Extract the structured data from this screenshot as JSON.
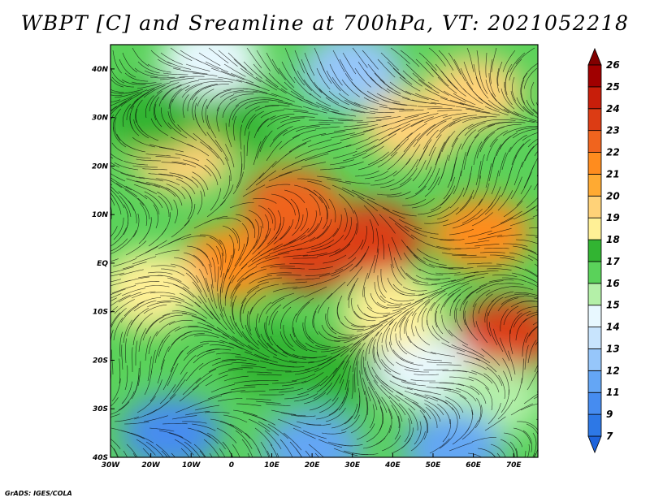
{
  "chart_data": {
    "type": "heatmap",
    "title": "WBPT [C] and Sreamline at 700hPa, VT: 2021052218",
    "variable": "WBPT",
    "units": "C",
    "level": "700hPa",
    "valid_time": "2021052218",
    "overlay": "streamlines",
    "x_axis": {
      "range": [
        -30,
        76
      ],
      "ticks": [
        -30,
        -20,
        -10,
        0,
        10,
        20,
        30,
        40,
        50,
        60,
        70
      ],
      "tick_labels": [
        "30W",
        "20W",
        "10W",
        "0",
        "10E",
        "20E",
        "30E",
        "40E",
        "50E",
        "60E",
        "70E"
      ]
    },
    "y_axis": {
      "range": [
        -40,
        45
      ],
      "ticks": [
        40,
        30,
        20,
        10,
        0,
        -10,
        -20,
        -30,
        -40
      ],
      "tick_labels": [
        "40N",
        "30N",
        "20N",
        "10N",
        "EQ",
        "10S",
        "20S",
        "30S",
        "40S"
      ]
    },
    "colorbar": {
      "levels": [
        "7",
        "9",
        "11",
        "12",
        "13",
        "14",
        "15",
        "16",
        "17",
        "18",
        "19",
        "20",
        "21",
        "22",
        "23",
        "24",
        "25",
        "26"
      ],
      "colors": [
        "#1e64dc",
        "#2d78e6",
        "#468cf0",
        "#64a6f5",
        "#96c6fa",
        "#c8e4fd",
        "#e8f8ff",
        "#b4f0a8",
        "#5ad25a",
        "#32b432",
        "#fff096",
        "#ffd278",
        "#ffaa32",
        "#ff8c1e",
        "#f0641e",
        "#dc3c14",
        "#c81e0a",
        "#a00000",
        "#820000"
      ]
    },
    "regions": [
      {
        "lon": 0,
        "lat": 0,
        "value": 21.5
      },
      {
        "lon": 20,
        "lat": 2,
        "value": 23.5
      },
      {
        "lon": 35,
        "lat": 5,
        "value": 23
      },
      {
        "lon": 15,
        "lat": 12,
        "value": 22.5
      },
      {
        "lon": 62,
        "lat": 6,
        "value": 21.5
      },
      {
        "lon": 68,
        "lat": -15,
        "value": 23
      },
      {
        "lon": -12,
        "lat": 22,
        "value": 19.5
      },
      {
        "lon": 5,
        "lat": 30,
        "value": 17.5
      },
      {
        "lon": 20,
        "lat": 33,
        "value": 16.5
      },
      {
        "lon": 45,
        "lat": 28,
        "value": 19
      },
      {
        "lon": 60,
        "lat": 35,
        "value": 19
      },
      {
        "lon": 30,
        "lat": 40,
        "value": 12.5
      },
      {
        "lon": -5,
        "lat": 42,
        "value": 14
      },
      {
        "lon": -20,
        "lat": 30,
        "value": 17
      },
      {
        "lon": -25,
        "lat": -15,
        "value": 16
      },
      {
        "lon": 10,
        "lat": -20,
        "value": 17
      },
      {
        "lon": 28,
        "lat": -22,
        "value": 17.5
      },
      {
        "lon": 48,
        "lat": -22,
        "value": 14
      },
      {
        "lon": 65,
        "lat": -28,
        "value": 15
      },
      {
        "lon": -15,
        "lat": -35,
        "value": 10
      },
      {
        "lon": 20,
        "lat": -38,
        "value": 11
      },
      {
        "lon": 55,
        "lat": -38,
        "value": 11
      },
      {
        "lon": 40,
        "lat": -10,
        "value": 18
      },
      {
        "lon": -20,
        "lat": -5,
        "value": 18.5
      }
    ]
  },
  "credit": "GrADS: IGES/COLA"
}
